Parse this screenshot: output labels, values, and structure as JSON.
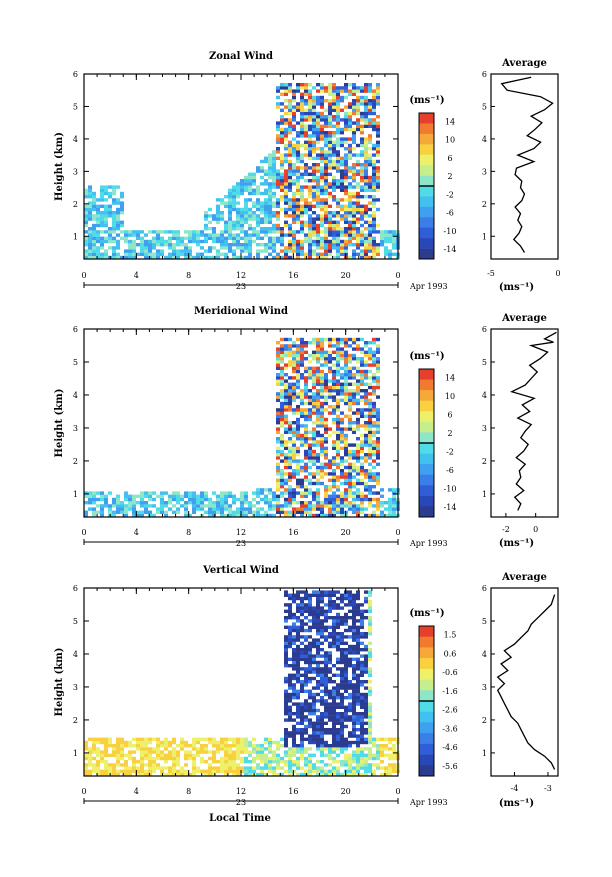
{
  "panels": [
    {
      "title": "Zonal Wind",
      "ylabel": "Height (km)",
      "yticks": [
        "1",
        "2",
        "3",
        "4",
        "5",
        "6"
      ],
      "xticks": [
        "0",
        "4",
        "8",
        "12",
        "16",
        "20",
        "0"
      ],
      "date_day": "23",
      "date_month": "Apr 1993",
      "cbar_unit": "(ms⁻¹)",
      "cbar_ticks": [
        "14",
        "10",
        "6",
        "2",
        "-2",
        "-6",
        "-10",
        "-14"
      ],
      "avg_title": "Average",
      "avg_xticks": [
        "-5",
        "0"
      ],
      "avg_xunit": "(ms⁻¹)"
    },
    {
      "title": "Meridional Wind",
      "ylabel": "Height (km)",
      "yticks": [
        "1",
        "2",
        "3",
        "4",
        "5",
        "6"
      ],
      "xticks": [
        "0",
        "4",
        "8",
        "12",
        "16",
        "20",
        "0"
      ],
      "date_day": "23",
      "date_month": "Apr 1993",
      "cbar_unit": "(ms⁻¹)",
      "cbar_ticks": [
        "14",
        "10",
        "6",
        "2",
        "-2",
        "-6",
        "-10",
        "-14"
      ],
      "avg_title": "Average",
      "avg_xticks": [
        "-2",
        "0"
      ],
      "avg_xunit": "(ms⁻¹)"
    },
    {
      "title": "Vertical Wind",
      "ylabel": "Height (km)",
      "yticks": [
        "1",
        "2",
        "3",
        "4",
        "5",
        "6"
      ],
      "xticks": [
        "0",
        "4",
        "8",
        "12",
        "16",
        "20",
        "0"
      ],
      "date_day": "23",
      "date_month": "Apr 1993",
      "cbar_unit": "(ms⁻¹)",
      "cbar_ticks": [
        "1.5",
        "0.6",
        "-0.6",
        "-1.6",
        "-2.6",
        "-3.6",
        "-4.6",
        "-5.6"
      ],
      "avg_title": "Average",
      "avg_xticks": [
        "-4",
        "-3"
      ],
      "avg_xunit": "(ms⁻¹)"
    }
  ],
  "xlabel": "Local Time",
  "chart_data": [
    {
      "type": "heatmap",
      "title": "Zonal Wind",
      "xlabel": "",
      "ylabel": "Height (km)",
      "xlim": [
        0,
        24
      ],
      "ylim": [
        0.3,
        6
      ],
      "clim": [
        -16,
        16
      ],
      "colorbar_ticks": [
        14,
        10,
        6,
        2,
        -2,
        -6,
        -10,
        -14
      ],
      "average_profile": {
        "xlim": [
          -5,
          0
        ],
        "x": [
          -2.5,
          -2.8,
          -3.3,
          -2.9,
          -2.7,
          -3.0,
          -2.8,
          -3.2,
          -2.7,
          -2.5,
          -2.8,
          -2.7,
          -3.2,
          -3.1,
          -1.8,
          -3.0,
          -1.8,
          -1.3,
          -2.3,
          -1.7,
          -1.2,
          -2.0,
          -1.0,
          -0.4,
          -1.3,
          -3.8,
          -4.2,
          -2.0
        ],
        "height": [
          0.5,
          0.7,
          0.9,
          1.1,
          1.3,
          1.5,
          1.7,
          1.9,
          2.1,
          2.3,
          2.5,
          2.7,
          2.9,
          3.1,
          3.3,
          3.5,
          3.7,
          3.9,
          4.1,
          4.3,
          4.5,
          4.7,
          4.9,
          5.1,
          5.3,
          5.5,
          5.7,
          5.9
        ]
      }
    },
    {
      "type": "heatmap",
      "title": "Meridional Wind",
      "xlabel": "",
      "ylabel": "Height (km)",
      "xlim": [
        0,
        24
      ],
      "ylim": [
        0.3,
        6
      ],
      "clim": [
        -16,
        16
      ],
      "colorbar_ticks": [
        14,
        10,
        6,
        2,
        -2,
        -6,
        -10,
        -14
      ],
      "average_profile": {
        "xlim": [
          -3,
          1.5
        ],
        "x": [
          -1.2,
          -1.0,
          -1.4,
          -0.8,
          -1.3,
          -1.0,
          -1.1,
          -0.7,
          -1.3,
          -0.8,
          -0.5,
          -1.0,
          -0.7,
          -0.3,
          -1.2,
          -0.4,
          -0.9,
          -0.1,
          -1.6,
          -0.7,
          -0.3,
          0.1,
          -0.4,
          0.3,
          0.8,
          -0.3,
          1.2,
          0.6,
          1.4
        ],
        "height": [
          0.5,
          0.7,
          0.9,
          1.1,
          1.3,
          1.5,
          1.7,
          1.9,
          2.1,
          2.3,
          2.5,
          2.7,
          2.9,
          3.1,
          3.3,
          3.5,
          3.7,
          3.9,
          4.1,
          4.3,
          4.5,
          4.7,
          4.9,
          5.1,
          5.3,
          5.5,
          5.6,
          5.7,
          5.9
        ]
      }
    },
    {
      "type": "heatmap",
      "title": "Vertical Wind",
      "xlabel": "Local Time",
      "ylabel": "Height (km)",
      "xlim": [
        0,
        24
      ],
      "ylim": [
        0.3,
        6
      ],
      "clim": [
        -6,
        2
      ],
      "colorbar_ticks": [
        1.5,
        0.6,
        -0.6,
        -1.6,
        -2.6,
        -3.6,
        -4.6,
        -5.6
      ],
      "average_profile": {
        "xlim": [
          -4.7,
          -2.7
        ],
        "x": [
          -2.8,
          -2.9,
          -3.1,
          -3.4,
          -3.6,
          -3.7,
          -3.8,
          -3.9,
          -4.1,
          -4.2,
          -4.3,
          -4.4,
          -4.5,
          -4.3,
          -4.5,
          -4.2,
          -4.4,
          -4.1,
          -4.3,
          -4.0,
          -3.8,
          -3.6,
          -3.5,
          -3.3,
          -3.1,
          -2.9,
          -2.8
        ],
        "height": [
          0.5,
          0.7,
          0.9,
          1.1,
          1.3,
          1.5,
          1.7,
          1.9,
          2.1,
          2.3,
          2.5,
          2.7,
          2.9,
          3.1,
          3.3,
          3.5,
          3.7,
          3.9,
          4.1,
          4.3,
          4.5,
          4.7,
          4.9,
          5.1,
          5.3,
          5.5,
          5.8
        ]
      }
    }
  ]
}
